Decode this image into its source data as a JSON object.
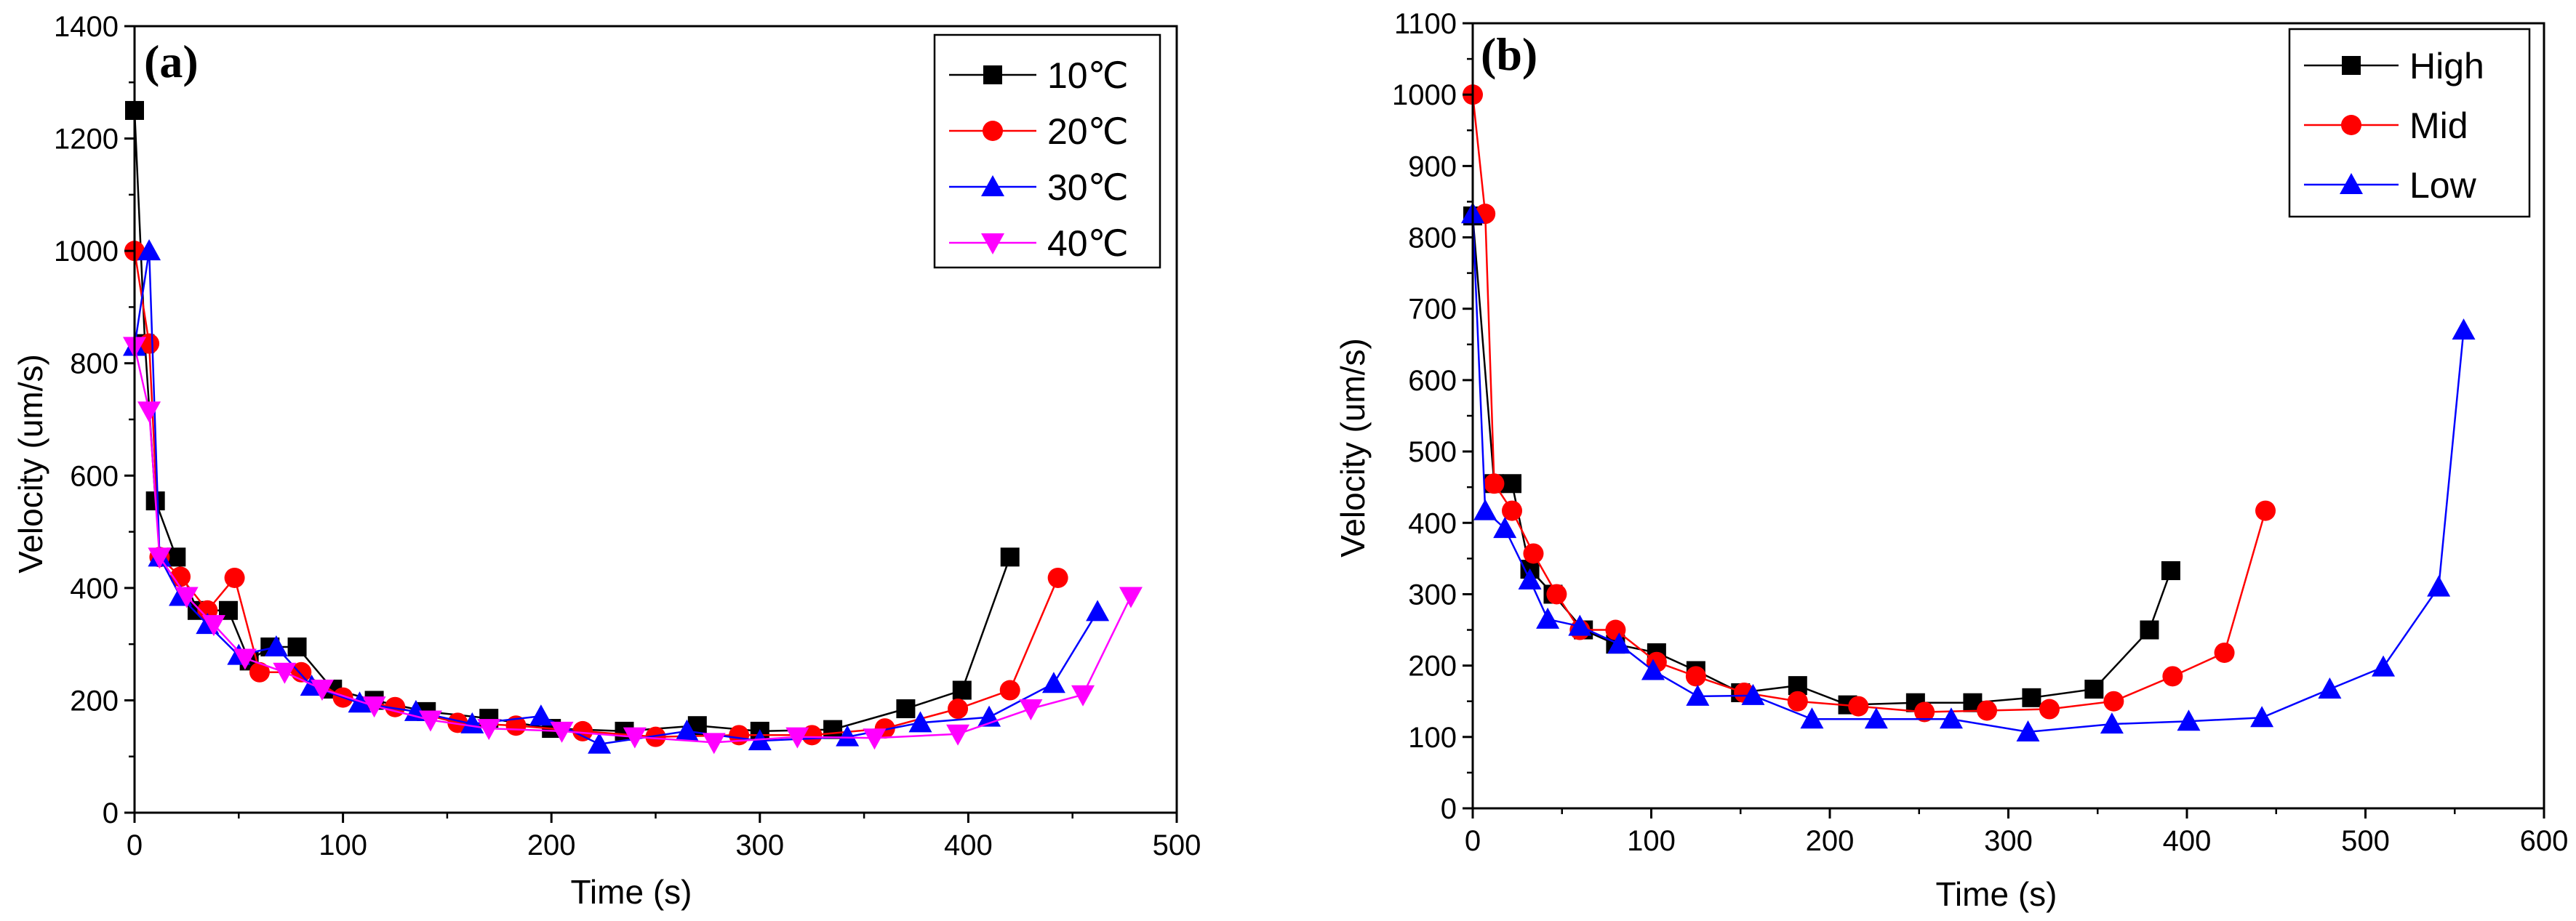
{
  "chart_data": [
    {
      "type": "line",
      "panel_label": "(a)",
      "xlabel": "Time (s)",
      "ylabel": "Velocity (um/s)",
      "xlim": [
        0,
        500
      ],
      "ylim": [
        0,
        1400
      ],
      "xticks": [
        0,
        100,
        200,
        300,
        400,
        500
      ],
      "yticks": [
        0,
        200,
        400,
        600,
        800,
        1000,
        1200,
        1400
      ],
      "x_tick_labels": [
        "0",
        "100",
        "200",
        "300",
        "400",
        "500"
      ],
      "y_tick_labels": [
        "0",
        "200",
        "400",
        "600",
        "800",
        "1000",
        "1200",
        "1400"
      ],
      "grid": false,
      "legend_position": "top-right",
      "series": [
        {
          "name": "10℃",
          "color": "#000000",
          "marker": "square",
          "points": [
            [
              0,
              1250
            ],
            [
              5,
              835
            ],
            [
              10,
              555
            ],
            [
              20,
              455
            ],
            [
              30,
              360
            ],
            [
              45,
              360
            ],
            [
              55,
              270
            ],
            [
              65,
              295
            ],
            [
              78,
              295
            ],
            [
              95,
              220
            ],
            [
              115,
              200
            ],
            [
              140,
              180
            ],
            [
              170,
              168
            ],
            [
              200,
              150
            ],
            [
              235,
              145
            ],
            [
              270,
              155
            ],
            [
              300,
              145
            ],
            [
              335,
              148
            ],
            [
              370,
              185
            ],
            [
              397,
              218
            ],
            [
              420,
              455
            ]
          ]
        },
        {
          "name": "20℃",
          "color": "#ff0000",
          "marker": "circle",
          "points": [
            [
              0,
              1000
            ],
            [
              7,
              835
            ],
            [
              12,
              455
            ],
            [
              22,
              420
            ],
            [
              35,
              360
            ],
            [
              48,
              418
            ],
            [
              60,
              250
            ],
            [
              80,
              250
            ],
            [
              100,
              205
            ],
            [
              125,
              188
            ],
            [
              155,
              160
            ],
            [
              183,
              155
            ],
            [
              215,
              145
            ],
            [
              250,
              135
            ],
            [
              290,
              138
            ],
            [
              325,
              138
            ],
            [
              360,
              150
            ],
            [
              395,
              185
            ],
            [
              420,
              218
            ],
            [
              443,
              418
            ]
          ]
        },
        {
          "name": "30℃",
          "color": "#0000ff",
          "marker": "triangle-up",
          "points": [
            [
              0,
              830
            ],
            [
              7,
              1000
            ],
            [
              12,
              455
            ],
            [
              22,
              385
            ],
            [
              35,
              335
            ],
            [
              50,
              280
            ],
            [
              68,
              295
            ],
            [
              85,
              225
            ],
            [
              108,
              195
            ],
            [
              135,
              180
            ],
            [
              162,
              158
            ],
            [
              195,
              172
            ],
            [
              223,
              122
            ],
            [
              265,
              145
            ],
            [
              300,
              128
            ],
            [
              342,
              135
            ],
            [
              377,
              160
            ],
            [
              410,
              170
            ],
            [
              441,
              230
            ],
            [
              462,
              358
            ]
          ]
        },
        {
          "name": "40℃",
          "color": "#ff00ff",
          "marker": "triangle-down",
          "points": [
            [
              0,
              830
            ],
            [
              7,
              715
            ],
            [
              12,
              455
            ],
            [
              25,
              385
            ],
            [
              38,
              335
            ],
            [
              53,
              275
            ],
            [
              72,
              250
            ],
            [
              90,
              220
            ],
            [
              115,
              190
            ],
            [
              142,
              165
            ],
            [
              170,
              150
            ],
            [
              205,
              145
            ],
            [
              240,
              135
            ],
            [
              278,
              125
            ],
            [
              318,
              135
            ],
            [
              355,
              133
            ],
            [
              395,
              140
            ],
            [
              430,
              185
            ],
            [
              455,
              210
            ],
            [
              478,
              385
            ]
          ]
        }
      ]
    },
    {
      "type": "line",
      "panel_label": "(b)",
      "xlabel": "Time (s)",
      "ylabel": "Velocity (um/s)",
      "xlim": [
        0,
        600
      ],
      "ylim": [
        0,
        1100
      ],
      "xticks": [
        0,
        100,
        200,
        300,
        400,
        500,
        600
      ],
      "yticks": [
        0,
        100,
        200,
        300,
        400,
        500,
        600,
        700,
        800,
        900,
        1000,
        1100
      ],
      "x_tick_labels": [
        "0",
        "100",
        "200",
        "300",
        "400",
        "500",
        "600"
      ],
      "y_tick_labels": [
        "0",
        "100",
        "200",
        "300",
        "400",
        "500",
        "600",
        "700",
        "800",
        "900",
        "1000",
        "1100"
      ],
      "grid": false,
      "legend_position": "top-right",
      "series": [
        {
          "name": "High",
          "color": "#000000",
          "marker": "square",
          "points": [
            [
              0,
              830
            ],
            [
              12,
              455
            ],
            [
              22,
              455
            ],
            [
              32,
              335
            ],
            [
              45,
              300
            ],
            [
              62,
              250
            ],
            [
              80,
              230
            ],
            [
              103,
              218
            ],
            [
              125,
              193
            ],
            [
              150,
              162
            ],
            [
              182,
              172
            ],
            [
              210,
              145
            ],
            [
              248,
              148
            ],
            [
              280,
              148
            ],
            [
              313,
              155
            ],
            [
              348,
              167
            ],
            [
              379,
              250
            ],
            [
              391,
              333
            ]
          ]
        },
        {
          "name": "Mid",
          "color": "#ff0000",
          "marker": "circle",
          "points": [
            [
              0,
              1000
            ],
            [
              7,
              833
            ],
            [
              12,
              455
            ],
            [
              22,
              417
            ],
            [
              34,
              357
            ],
            [
              47,
              300
            ],
            [
              60,
              250
            ],
            [
              80,
              250
            ],
            [
              103,
              205
            ],
            [
              125,
              185
            ],
            [
              152,
              162
            ],
            [
              182,
              150
            ],
            [
              216,
              143
            ],
            [
              253,
              135
            ],
            [
              288,
              137
            ],
            [
              323,
              139
            ],
            [
              359,
              150
            ],
            [
              392,
              185
            ],
            [
              421,
              218
            ],
            [
              444,
              417
            ]
          ]
        },
        {
          "name": "Low",
          "color": "#0000ff",
          "marker": "triangle-up",
          "points": [
            [
              0,
              833
            ],
            [
              7,
              417
            ],
            [
              18,
              392
            ],
            [
              32,
              320
            ],
            [
              42,
              265
            ],
            [
              60,
              255
            ],
            [
              82,
              230
            ],
            [
              101,
              193
            ],
            [
              126,
              157
            ],
            [
              157,
              158
            ],
            [
              190,
              125
            ],
            [
              226,
              125
            ],
            [
              268,
              125
            ],
            [
              311,
              107
            ],
            [
              358,
              118
            ],
            [
              401,
              122
            ],
            [
              442,
              127
            ],
            [
              480,
              167
            ],
            [
              510,
              198
            ],
            [
              541,
              310
            ],
            [
              555,
              670
            ]
          ]
        }
      ]
    }
  ]
}
